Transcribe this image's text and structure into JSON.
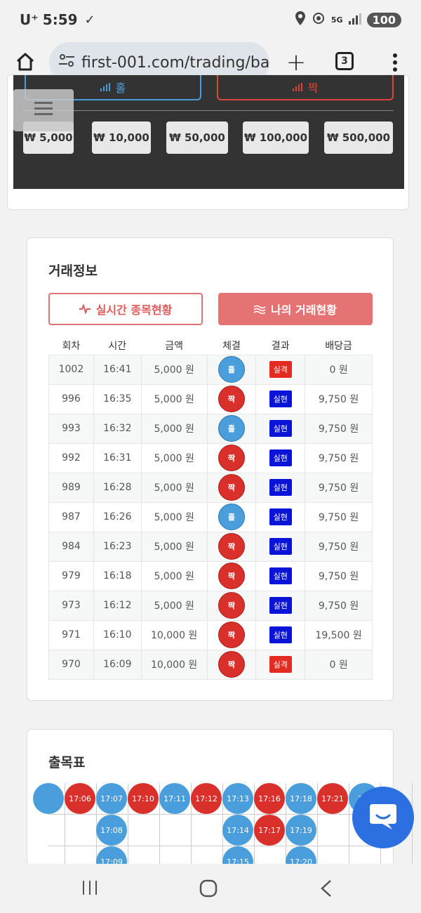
{
  "status_bar": {
    "carrier": "U⁺",
    "time": "5:59",
    "network": "5G",
    "battery": "100"
  },
  "browser": {
    "url": "first-001.com/trading/ba",
    "tab_count": "3"
  },
  "bet_panel": {
    "odd_label": "홀",
    "even_label": "짝",
    "amounts": [
      "₩ 5,000",
      "₩ 10,000",
      "₩ 50,000",
      "₩ 100,000",
      "₩ 500,000"
    ]
  },
  "trade_info": {
    "title": "거래정보",
    "tab_live": "실시간 종목현황",
    "tab_mine": "나의 거래현황",
    "headers": [
      "회차",
      "시간",
      "금액",
      "체결",
      "결과",
      "배당금"
    ],
    "rows": [
      {
        "round": "1002",
        "time": "16:41",
        "amount": "5,000 원",
        "pick": "홀",
        "pick_type": "odd",
        "result": "실격",
        "result_type": "lose",
        "payout": "0 원"
      },
      {
        "round": "996",
        "time": "16:35",
        "amount": "5,000 원",
        "pick": "짝",
        "pick_type": "even",
        "result": "실현",
        "result_type": "win",
        "payout": "9,750 원"
      },
      {
        "round": "993",
        "time": "16:32",
        "amount": "5,000 원",
        "pick": "홀",
        "pick_type": "odd",
        "result": "실현",
        "result_type": "win",
        "payout": "9,750 원"
      },
      {
        "round": "992",
        "time": "16:31",
        "amount": "5,000 원",
        "pick": "짝",
        "pick_type": "even",
        "result": "실현",
        "result_type": "win",
        "payout": "9,750 원"
      },
      {
        "round": "989",
        "time": "16:28",
        "amount": "5,000 원",
        "pick": "짝",
        "pick_type": "even",
        "result": "실현",
        "result_type": "win",
        "payout": "9,750 원"
      },
      {
        "round": "987",
        "time": "16:26",
        "amount": "5,000 원",
        "pick": "홀",
        "pick_type": "odd",
        "result": "실현",
        "result_type": "win",
        "payout": "9,750 원"
      },
      {
        "round": "984",
        "time": "16:23",
        "amount": "5,000 원",
        "pick": "짝",
        "pick_type": "even",
        "result": "실현",
        "result_type": "win",
        "payout": "9,750 원"
      },
      {
        "round": "979",
        "time": "16:18",
        "amount": "5,000 원",
        "pick": "짝",
        "pick_type": "even",
        "result": "실현",
        "result_type": "win",
        "payout": "9,750 원"
      },
      {
        "round": "973",
        "time": "16:12",
        "amount": "5,000 원",
        "pick": "짝",
        "pick_type": "even",
        "result": "실현",
        "result_type": "win",
        "payout": "9,750 원"
      },
      {
        "round": "971",
        "time": "16:10",
        "amount": "10,000 원",
        "pick": "짝",
        "pick_type": "even",
        "result": "실현",
        "result_type": "win",
        "payout": "19,500 원"
      },
      {
        "round": "970",
        "time": "16:09",
        "amount": "10,000 원",
        "pick": "짝",
        "pick_type": "even",
        "result": "실격",
        "result_type": "lose",
        "payout": "0 원"
      }
    ]
  },
  "chart_table": {
    "title": "출목표",
    "row1": [
      {
        "label": "",
        "type": "odd"
      },
      {
        "label": "17:06",
        "type": "even"
      },
      {
        "label": "17:07",
        "type": "odd"
      },
      {
        "label": "17:10",
        "type": "even"
      },
      {
        "label": "17:11",
        "type": "odd"
      },
      {
        "label": "17:12",
        "type": "even"
      },
      {
        "label": "17:13",
        "type": "odd"
      },
      {
        "label": "17:16",
        "type": "even"
      },
      {
        "label": "17:18",
        "type": "odd"
      },
      {
        "label": "17:21",
        "type": "even"
      },
      {
        "label": "17:",
        "type": "odd"
      }
    ],
    "row2": [
      {
        "col": 2,
        "label": "17:08",
        "type": "odd"
      },
      {
        "col": 6,
        "label": "17:14",
        "type": "odd"
      },
      {
        "col": 7,
        "label": "17:17",
        "type": "even"
      },
      {
        "col": 8,
        "label": "17:19",
        "type": "odd"
      }
    ],
    "row3": [
      {
        "col": 2,
        "label": "17:09",
        "type": "odd"
      },
      {
        "col": 6,
        "label": "17:15",
        "type": "odd"
      },
      {
        "col": 8,
        "label": "17:20",
        "type": "odd"
      }
    ]
  }
}
